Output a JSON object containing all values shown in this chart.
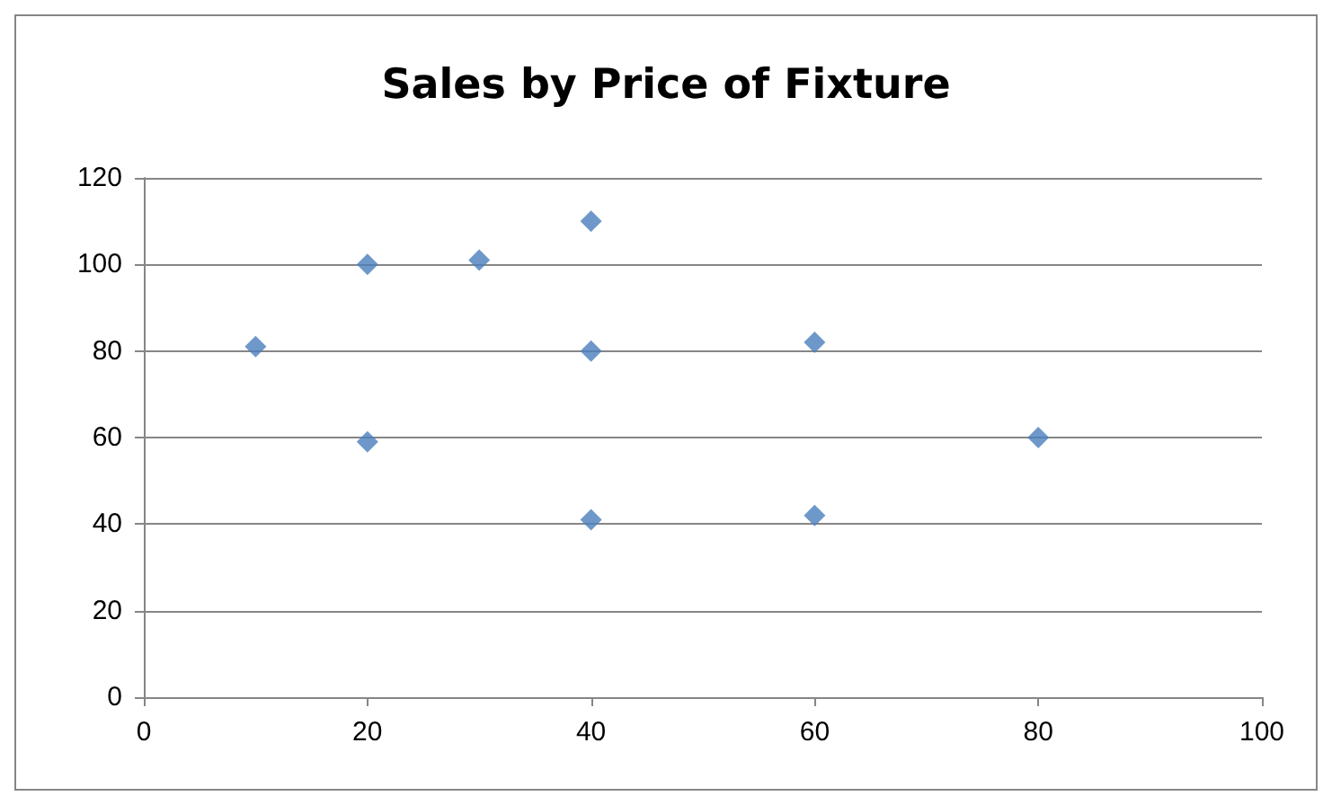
{
  "chart_data": {
    "type": "scatter",
    "title": "Sales by Price of Fixture",
    "x": [
      10,
      20,
      20,
      30,
      40,
      40,
      40,
      60,
      60,
      80
    ],
    "values": [
      81,
      100,
      59,
      101,
      110,
      80,
      41,
      82,
      42,
      60
    ],
    "color": "#4a7ebb",
    "marker": "diamond",
    "xlim": [
      0,
      100
    ],
    "xticks": [
      0,
      20,
      40,
      60,
      80,
      100
    ],
    "ylim": [
      0,
      120
    ],
    "yticks": [
      0,
      20,
      40,
      60,
      80,
      100,
      120
    ],
    "grid": "y"
  }
}
